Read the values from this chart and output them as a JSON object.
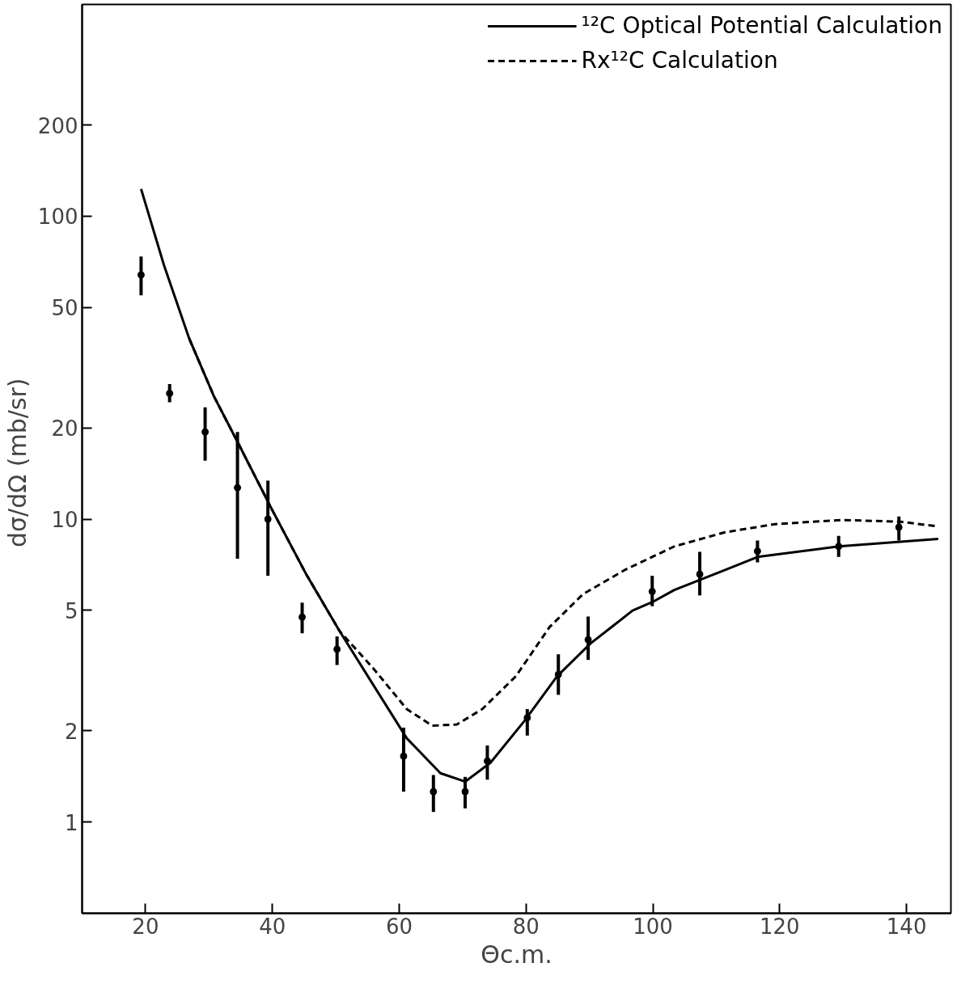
{
  "chart_data": {
    "type": "line",
    "xlabel": "Θc.m.",
    "ylabel": "dσ/dΩ  (mb/sr)",
    "log": "y",
    "grid": false,
    "legend": "top right",
    "xlim": [
      10,
      147
    ],
    "xticks": [
      20,
      40,
      60,
      80,
      100,
      120,
      140
    ],
    "ylim": [
      0.5,
      500
    ],
    "yticks": [
      1,
      2,
      5,
      10,
      20,
      50,
      100,
      200
    ],
    "series": [
      {
        "type": "scatter",
        "marker": "circle",
        "color": "#000000",
        "x": [
          19.3,
          23.8,
          29.4,
          34.5,
          39.3,
          44.7,
          50.2,
          60.7,
          65.4,
          70.4,
          73.9,
          80.2,
          85.1,
          89.8,
          99.9,
          107.4,
          116.5,
          129.3,
          138.8
        ],
        "values": [
          64,
          26,
          19.4,
          12.7,
          10,
          4.75,
          3.72,
          1.65,
          1.26,
          1.26,
          1.59,
          2.21,
          3.07,
          4.0,
          5.77,
          6.58,
          7.84,
          8.13,
          9.4
        ],
        "errors": [
          [
            54.8,
            73.6
          ],
          [
            24.3,
            27.9
          ],
          [
            15.6,
            23.4
          ],
          [
            7.4,
            19.4
          ],
          [
            6.5,
            13.4
          ],
          [
            4.2,
            5.3
          ],
          [
            3.3,
            4.1
          ],
          [
            1.26,
            2.05
          ],
          [
            1.08,
            1.43
          ],
          [
            1.11,
            1.41
          ],
          [
            1.38,
            1.79
          ],
          [
            1.93,
            2.36
          ],
          [
            2.63,
            3.58
          ],
          [
            3.43,
            4.77
          ],
          [
            5.16,
            6.5
          ],
          [
            5.6,
            7.8
          ],
          [
            7.2,
            8.5
          ],
          [
            7.5,
            8.8
          ],
          [
            8.5,
            10.2
          ]
        ]
      },
      {
        "name": "¹²C Optical Potential Calculation",
        "line_style": "solid",
        "color": "#000000",
        "x": [
          19.3,
          22.9,
          26.9,
          30.8,
          34.8,
          40.1,
          45.3,
          50.6,
          55.9,
          61.2,
          66.5,
          70.4,
          74.4,
          79.7,
          84.9,
          90.2,
          96.8,
          99.9,
          103.4,
          111.4,
          116.5,
          129.3,
          145
        ],
        "values": [
          123,
          69,
          39.4,
          25.4,
          17.5,
          10.6,
          6.6,
          4.27,
          2.84,
          1.89,
          1.45,
          1.36,
          1.57,
          2.15,
          3.03,
          3.89,
          4.99,
          5.32,
          5.84,
          6.8,
          7.5,
          8.13,
          8.6
        ]
      },
      {
        "name": "Rx¹²C Calculation",
        "line_style": "dashed",
        "color": "#000000",
        "x": [
          26.9,
          30.8,
          34.8,
          40.1,
          45.3,
          50.6,
          55.9,
          61.2,
          65.2,
          69.1,
          73.1,
          78.4,
          83.7,
          89.0,
          95.6,
          103.4,
          111.4,
          119.3,
          129.8,
          139.1,
          145
        ],
        "values": [
          39.4,
          25.4,
          17.5,
          10.6,
          6.6,
          4.27,
          3.22,
          2.36,
          2.08,
          2.1,
          2.36,
          3.03,
          4.4,
          5.66,
          6.8,
          8.13,
          9.05,
          9.63,
          9.94,
          9.8,
          9.46
        ]
      }
    ]
  }
}
